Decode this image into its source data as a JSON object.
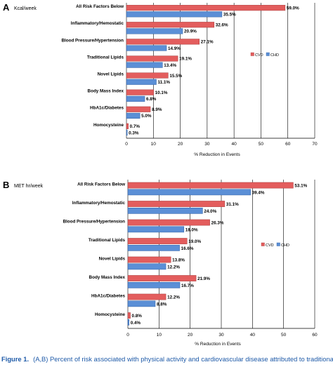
{
  "colors": {
    "cvd": "#e35d5d",
    "chd": "#5b8fd6",
    "cvd_stroke": "#a83a3a",
    "chd_stroke": "#2f5fa3",
    "grid": "#000000",
    "caption": "#1e5aa8"
  },
  "legend": {
    "cvd": "CVD",
    "chd": "CHD"
  },
  "caption": {
    "label": "Figure 1.",
    "text": "(A,B) Percent of risk associated with physical activity and cardiovascular disease attributed to traditional risk factor"
  },
  "chart_data": [
    {
      "type": "bar",
      "panel": "A",
      "unit_label": "Kcal/week",
      "xlabel": "% Reduction in Events",
      "xlim": [
        0,
        70
      ],
      "xticks": [
        0,
        10,
        20,
        30,
        40,
        50,
        60,
        70
      ],
      "legend_position": "right",
      "categories": [
        "All Risk Factors Below",
        "Inflammatory/Hemostatic",
        "Blood Pressure/Hypertension",
        "Traditional Lipids",
        "Novel Lipids",
        "Body Mass Index",
        "HbA1c/Diabetes",
        "Homocysteine"
      ],
      "series": [
        {
          "name": "CVD",
          "values": [
            59.0,
            32.6,
            27.1,
            19.1,
            15.5,
            10.1,
            8.9,
            0.7
          ],
          "labels": [
            "59.0%",
            "32.6%",
            "27.1%",
            "19.1%",
            "15.5%",
            "10.1%",
            "8.9%",
            "0.7%"
          ]
        },
        {
          "name": "CHD",
          "values": [
            35.5,
            20.9,
            14.9,
            13.4,
            11.1,
            6.8,
            5.0,
            0.3
          ],
          "labels": [
            "35.5%",
            "20.9%",
            "14.9%",
            "13.4%",
            "11.1%",
            "6.8%",
            "5.0%",
            "0.3%"
          ]
        }
      ]
    },
    {
      "type": "bar",
      "panel": "B",
      "unit_label": "MET hr/week",
      "xlabel": "% Reduction in Events",
      "xlim": [
        0,
        60
      ],
      "xticks": [
        0,
        10,
        20,
        30,
        40,
        50,
        60
      ],
      "legend_position": "right",
      "categories": [
        "All Risk Factors Below",
        "Inflammatory/Hemostatic",
        "Blood Pressure/Hypertension",
        "Traditional Lipids",
        "Novel Lipids",
        "Body Mass Index",
        "HbA1c/Diabetes",
        "Homocysteine"
      ],
      "series": [
        {
          "name": "CVD",
          "values": [
            53.1,
            31.1,
            26.3,
            19.0,
            13.8,
            21.9,
            12.2,
            0.8
          ],
          "labels": [
            "53.1%",
            "31.1%",
            "26.3%",
            "19.0%",
            "13.8%",
            "21.9%",
            "12.2%",
            "0.8%"
          ]
        },
        {
          "name": "CHD",
          "values": [
            39.4,
            24.0,
            18.0,
            16.6,
            12.2,
            16.7,
            8.8,
            0.4
          ],
          "labels": [
            "39.4%",
            "24.0%",
            "18.0%",
            "16.6%",
            "12.2%",
            "16.7%",
            "8.8%",
            "0.4%"
          ]
        }
      ]
    }
  ]
}
